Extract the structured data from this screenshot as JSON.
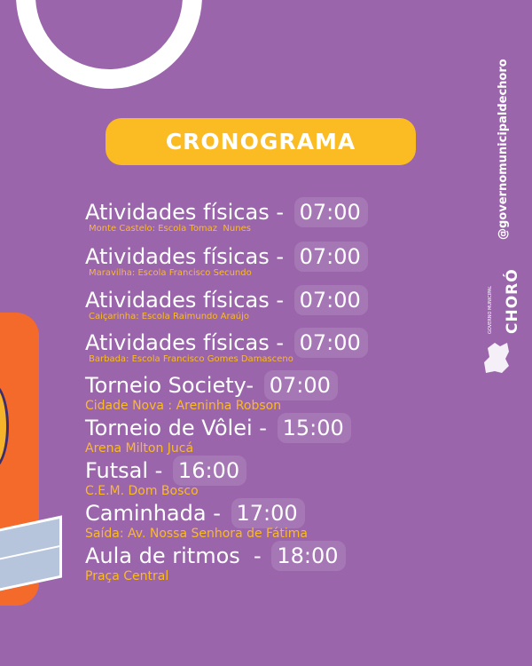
{
  "title": "CRONOGRAMA",
  "schedule": [
    {
      "activity": "Atividades físicas - ",
      "time": "07:00",
      "location": "Monte Castelo: Escola Tomaz  Nunes"
    },
    {
      "activity": "Atividades físicas - ",
      "time": "07:00",
      "location": "Maravilha: Escola Francisco Secundo"
    },
    {
      "activity": "Atividades físicas - ",
      "time": "07:00",
      "location": "Caiçarinha: Escola Raimundo Araújo"
    },
    {
      "activity": "Atividades físicas - ",
      "time": "07:00",
      "location": "Barbada: Escola Francisco Gomes Damasceno"
    },
    {
      "activity": "Torneio Society- ",
      "time": "07:00",
      "location": "Cidade Nova : Areninha Robson"
    },
    {
      "activity": "Torneio de Vôlei - ",
      "time": "15:00",
      "location": "Arena Milton Jucá"
    },
    {
      "activity": "Futsal - ",
      "time": "16:00",
      "location": "C.E.M. Dom Bosco"
    },
    {
      "activity": "Caminhada - ",
      "time": "17:00",
      "location": "Saída: Av. Nossa Senhora de Fátima"
    },
    {
      "activity": "Aula de ritmos  - ",
      "time": "18:00",
      "location": "Praça Central"
    }
  ],
  "sidebar": {
    "handle": "@governomunicipaldechoro",
    "logo_main": "CHORÓ",
    "logo_small": "GOVERNO MUNICIPAL"
  },
  "colors": {
    "background": "#9a65ab",
    "accent": "#fbbb22",
    "orange": "#f46a2a",
    "text": "#ffffff"
  }
}
